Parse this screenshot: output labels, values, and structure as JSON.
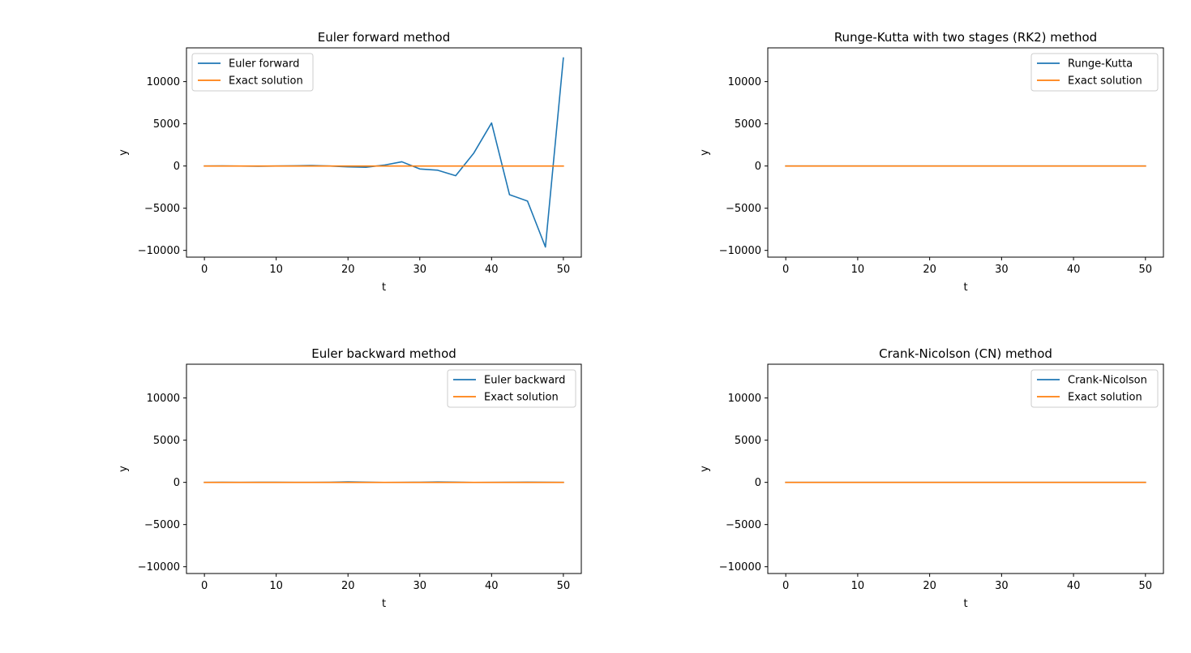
{
  "figure": {
    "background": "#ffffff",
    "colors": {
      "series1": "#1f77b4",
      "series2": "#ff7f0e",
      "axis": "#000000",
      "legend_border": "#cccccc"
    }
  },
  "chart_data": [
    {
      "type": "line",
      "title": "Euler forward method",
      "xlabel": "t",
      "ylabel": "y",
      "xlim": [
        -2.5,
        52.5
      ],
      "ylim": [
        -10800,
        14000
      ],
      "xticks": [
        0,
        10,
        20,
        30,
        40,
        50
      ],
      "yticks": [
        -10000,
        -5000,
        0,
        5000,
        10000
      ],
      "xtick_labels": [
        "0",
        "10",
        "20",
        "30",
        "40",
        "50"
      ],
      "ytick_labels": [
        "−10000",
        "−5000",
        "0",
        "5000",
        "10000"
      ],
      "grid": false,
      "legend_position": "upper left",
      "series": [
        {
          "name": "Euler forward",
          "color": "#1f77b4",
          "x": [
            0,
            2.5,
            5,
            7.5,
            10,
            12.5,
            15,
            17.5,
            20,
            22.5,
            25,
            27.5,
            30,
            32.5,
            35,
            37.5,
            40,
            42.5,
            45,
            47.5,
            50
          ],
          "y": [
            0,
            10,
            -10,
            -30,
            0,
            20,
            60,
            0,
            -100,
            -150,
            100,
            500,
            -350,
            -500,
            -1150,
            1500,
            5100,
            -3400,
            -4150,
            -9600,
            12800
          ]
        },
        {
          "name": "Exact solution",
          "color": "#ff7f0e",
          "x": [
            0,
            50
          ],
          "y": [
            0,
            0
          ]
        }
      ]
    },
    {
      "type": "line",
      "title": "Runge-Kutta with two stages (RK2) method",
      "xlabel": "t",
      "ylabel": "y",
      "xlim": [
        -2.5,
        52.5
      ],
      "ylim": [
        -10800,
        14000
      ],
      "xticks": [
        0,
        10,
        20,
        30,
        40,
        50
      ],
      "yticks": [
        -10000,
        -5000,
        0,
        5000,
        10000
      ],
      "xtick_labels": [
        "0",
        "10",
        "20",
        "30",
        "40",
        "50"
      ],
      "ytick_labels": [
        "−10000",
        "−5000",
        "0",
        "5000",
        "10000"
      ],
      "grid": false,
      "legend_position": "upper right",
      "series": [
        {
          "name": "Runge-Kutta",
          "color": "#1f77b4",
          "x": [
            0,
            5,
            10,
            15,
            20,
            25,
            30,
            35,
            40,
            45,
            50
          ],
          "y": [
            0,
            0,
            0,
            0,
            0,
            0,
            0,
            0,
            0,
            0,
            0
          ]
        },
        {
          "name": "Exact solution",
          "color": "#ff7f0e",
          "x": [
            0,
            50
          ],
          "y": [
            0,
            0
          ]
        }
      ]
    },
    {
      "type": "line",
      "title": "Euler backward method",
      "xlabel": "t",
      "ylabel": "y",
      "xlim": [
        -2.5,
        52.5
      ],
      "ylim": [
        -10800,
        14000
      ],
      "xticks": [
        0,
        10,
        20,
        30,
        40,
        50
      ],
      "yticks": [
        -10000,
        -5000,
        0,
        5000,
        10000
      ],
      "xtick_labels": [
        "0",
        "10",
        "20",
        "30",
        "40",
        "50"
      ],
      "ytick_labels": [
        "−10000",
        "−5000",
        "0",
        "5000",
        "10000"
      ],
      "grid": false,
      "legend_position": "upper right",
      "series": [
        {
          "name": "Euler backward",
          "color": "#1f77b4",
          "x": [
            0,
            2.5,
            5,
            7.5,
            10,
            12.5,
            15,
            17.5,
            20,
            22.5,
            25,
            27.5,
            30,
            32.5,
            35,
            37.5,
            40,
            42.5,
            45,
            47.5,
            50
          ],
          "y": [
            0,
            5,
            0,
            10,
            5,
            -5,
            0,
            10,
            60,
            20,
            -10,
            0,
            10,
            40,
            20,
            -10,
            0,
            5,
            20,
            10,
            0
          ]
        },
        {
          "name": "Exact solution",
          "color": "#ff7f0e",
          "x": [
            0,
            50
          ],
          "y": [
            0,
            0
          ]
        }
      ]
    },
    {
      "type": "line",
      "title": "Crank-Nicolson (CN) method",
      "xlabel": "t",
      "ylabel": "y",
      "xlim": [
        -2.5,
        52.5
      ],
      "ylim": [
        -10800,
        14000
      ],
      "xticks": [
        0,
        10,
        20,
        30,
        40,
        50
      ],
      "yticks": [
        -10000,
        -5000,
        0,
        5000,
        10000
      ],
      "xtick_labels": [
        "0",
        "10",
        "20",
        "30",
        "40",
        "50"
      ],
      "ytick_labels": [
        "−10000",
        "−5000",
        "0",
        "5000",
        "10000"
      ],
      "grid": false,
      "legend_position": "upper right",
      "series": [
        {
          "name": "Crank-Nicolson",
          "color": "#1f77b4",
          "x": [
            0,
            5,
            10,
            15,
            20,
            25,
            30,
            35,
            40,
            45,
            50
          ],
          "y": [
            0,
            0,
            0,
            0,
            0,
            0,
            0,
            0,
            0,
            0,
            0
          ]
        },
        {
          "name": "Exact solution",
          "color": "#ff7f0e",
          "x": [
            0,
            50
          ],
          "y": [
            0,
            0
          ]
        }
      ]
    }
  ]
}
